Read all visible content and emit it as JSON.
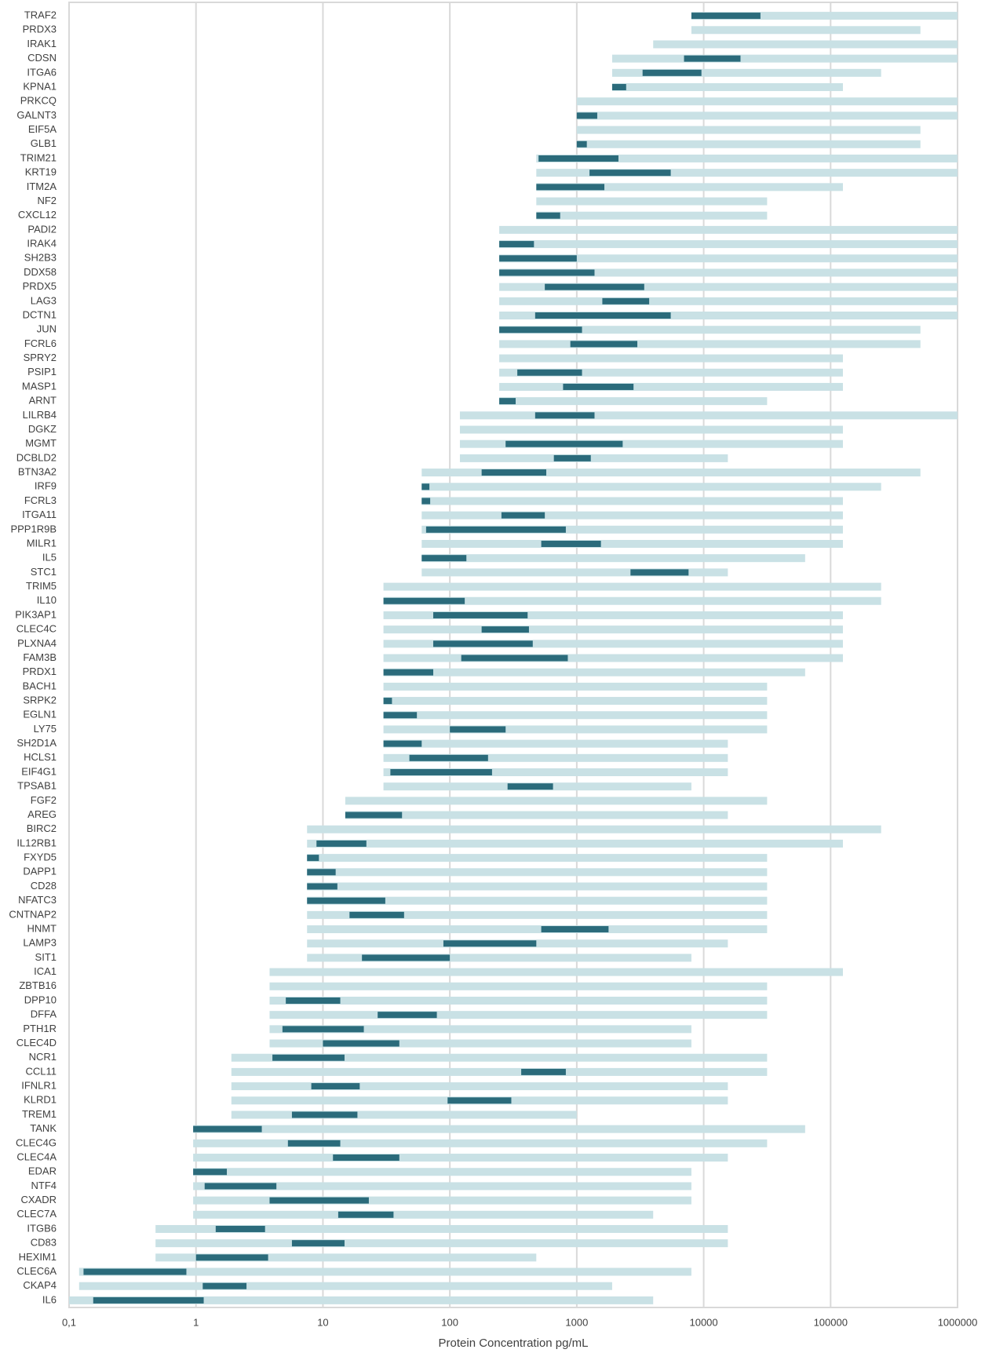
{
  "chart_data": {
    "type": "range",
    "xlabel": "Protein Concentration pg/mL",
    "xlim": [
      0.1,
      1000000
    ],
    "log_x": true,
    "grid": true,
    "xticks": [
      {
        "value": 0.1,
        "label": "0,1"
      },
      1,
      10,
      100,
      1000,
      10000,
      100000,
      1000000
    ],
    "categories": [
      "TRAF2",
      "PRDX3",
      "IRAK1",
      "CDSN",
      "ITGA6",
      "KPNA1",
      "PRKCQ",
      "GALNT3",
      "EIF5A",
      "GLB1",
      "TRIM21",
      "KRT19",
      "ITM2A",
      "NF2",
      "CXCL12",
      "PADI2",
      "IRAK4",
      "SH2B3",
      "DDX58",
      "PRDX5",
      "LAG3",
      "DCTN1",
      "JUN",
      "FCRL6",
      "SPRY2",
      "PSIP1",
      "MASP1",
      "ARNT",
      "LILRB4",
      "DGKZ",
      "MGMT",
      "DCBLD2",
      "BTN3A2",
      "IRF9",
      "FCRL3",
      "ITGA11",
      "PPP1R9B",
      "MILR1",
      "IL5",
      "STC1",
      "TRIM5",
      "IL10",
      "PIK3AP1",
      "CLEC4C",
      "PLXNA4",
      "FAM3B",
      "PRDX1",
      "BACH1",
      "SRPK2",
      "EGLN1",
      "LY75",
      "SH2D1A",
      "HCLS1",
      "EIF4G1",
      "TPSAB1",
      "FGF2",
      "AREG",
      "BIRC2",
      "IL12RB1",
      "FXYD5",
      "DAPP1",
      "CD28",
      "NFATC3",
      "CNTNAP2",
      "HNMT",
      "LAMP3",
      "SIT1",
      "ICA1",
      "ZBTB16",
      "DPP10",
      "DFFA",
      "PTH1R",
      "CLEC4D",
      "NCR1",
      "CCL11",
      "IFNLR1",
      "KLRD1",
      "TREM1",
      "TANK",
      "CLEC4G",
      "CLEC4A",
      "EDAR",
      "NTF4",
      "CXADR",
      "CLEC7A",
      "ITGB6",
      "CD83",
      "HEXIM1",
      "CLEC6A",
      "CKAP4",
      "IL6"
    ],
    "series": [
      {
        "color": "#c9e1e5",
        "low": [
          8000,
          8000,
          4000,
          1900,
          1900,
          1900,
          1000,
          1000,
          1000,
          1000,
          480,
          480,
          480,
          480,
          480,
          245,
          245,
          245,
          245,
          245,
          245,
          245,
          245,
          245,
          245,
          245,
          245,
          245,
          120,
          120,
          120,
          120,
          60,
          60,
          60,
          60,
          60,
          60,
          60,
          60,
          30,
          30,
          30,
          30,
          30,
          30,
          30,
          30,
          30,
          30,
          30,
          30,
          30,
          30,
          30,
          15,
          15,
          7.5,
          7.5,
          7.5,
          7.5,
          7.5,
          7.5,
          7.5,
          7.5,
          7.5,
          7.5,
          3.8,
          3.8,
          3.8,
          3.8,
          3.8,
          3.8,
          1.9,
          1.9,
          1.9,
          1.9,
          1.9,
          0.95,
          0.95,
          0.95,
          0.95,
          0.95,
          0.95,
          0.95,
          0.48,
          0.48,
          0.48,
          0.12,
          0.12,
          0.1
        ],
        "high": [
          1000000,
          510000,
          1000000,
          1000000,
          250000,
          125000,
          1000000,
          1000000,
          510000,
          510000,
          1000000,
          1000000,
          125000,
          31600,
          31600,
          1000000,
          1000000,
          1000000,
          1000000,
          1000000,
          1000000,
          1000000,
          510000,
          510000,
          125000,
          125000,
          125000,
          31600,
          1000000,
          125000,
          125000,
          15500,
          510000,
          250000,
          125000,
          125000,
          125000,
          125000,
          63000,
          15500,
          250000,
          250000,
          125000,
          125000,
          125000,
          125000,
          63000,
          31600,
          31600,
          31600,
          31600,
          15500,
          15500,
          15500,
          8000,
          31600,
          15500,
          250000,
          125000,
          31600,
          31600,
          31600,
          31600,
          31600,
          31600,
          15500,
          8000,
          125000,
          31600,
          31600,
          31600,
          8000,
          8000,
          31600,
          31600,
          15500,
          15500,
          1000,
          63000,
          31600,
          15500,
          8000,
          8000,
          8000,
          4000,
          15500,
          15500,
          480,
          8000,
          1900,
          4000
        ]
      },
      {
        "color": "#2b6b7b",
        "low": [
          8000,
          null,
          null,
          7000,
          3300,
          1900,
          null,
          1000,
          null,
          1000,
          500,
          1260,
          480,
          null,
          480,
          null,
          245,
          245,
          245,
          560,
          1590,
          470,
          245,
          890,
          null,
          340,
          780,
          245,
          470,
          null,
          275,
          660,
          178,
          60,
          60,
          255,
          65,
          525,
          60,
          2650,
          null,
          30,
          74,
          178,
          74,
          123,
          30,
          null,
          30,
          30,
          100,
          30,
          48,
          34,
          285,
          null,
          15,
          null,
          8.9,
          7.5,
          7.5,
          7.5,
          7.5,
          16.2,
          525,
          89,
          20.3,
          null,
          null,
          5.1,
          27,
          4.8,
          10,
          4,
          365,
          8.1,
          96,
          5.7,
          0.95,
          5.3,
          12,
          0.95,
          1.17,
          3.8,
          13.2,
          1.43,
          5.7,
          1,
          0.13,
          1.13,
          0.155
        ],
        "high": [
          28000,
          null,
          null,
          19500,
          9600,
          2450,
          null,
          1450,
          null,
          1200,
          2130,
          5500,
          1650,
          null,
          740,
          null,
          460,
          1000,
          1380,
          3400,
          3720,
          5500,
          1100,
          3000,
          null,
          1100,
          2800,
          330,
          1380,
          null,
          2300,
          1290,
          575,
          69,
          70,
          560,
          820,
          1550,
          135,
          7600,
          null,
          131,
          410,
          420,
          450,
          850,
          74,
          null,
          35,
          55,
          275,
          60,
          200,
          215,
          650,
          null,
          42,
          null,
          22,
          9.3,
          12.6,
          13,
          31,
          43.6,
          1780,
          480,
          100,
          null,
          null,
          13.7,
          79,
          21,
          40,
          14.8,
          820,
          19.5,
          305,
          18.7,
          3.3,
          13.7,
          40,
          1.75,
          4.3,
          23,
          36,
          3.5,
          14.8,
          3.7,
          0.84,
          2.5,
          1.15
        ]
      }
    ]
  }
}
